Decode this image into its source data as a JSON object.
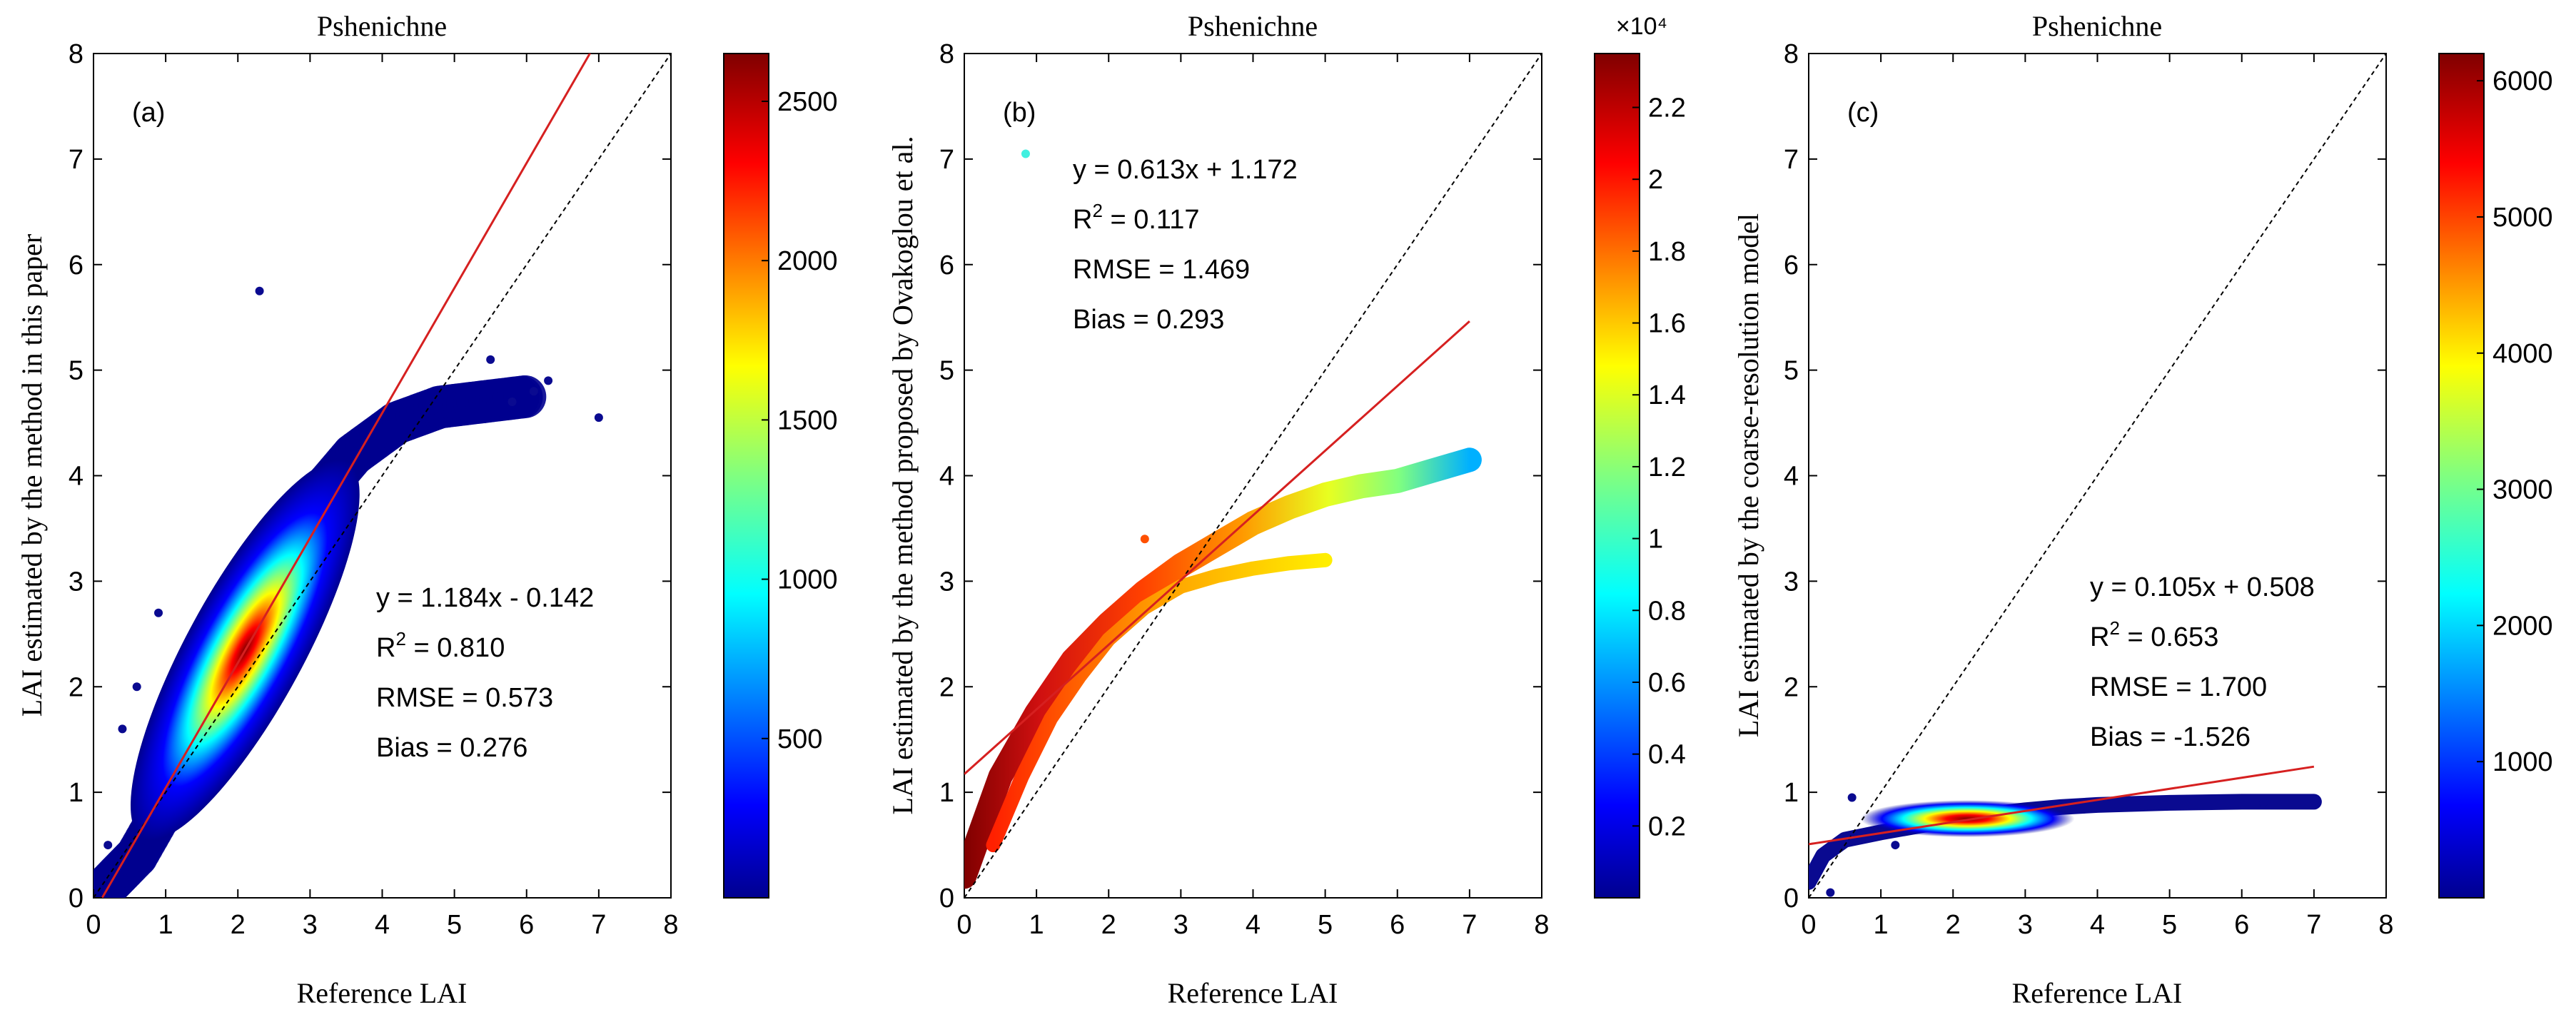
{
  "figure": {
    "panels_count": 3
  },
  "colors": {
    "fit_line": "#d62020",
    "one_to_one": "#000000",
    "axis": "#000000",
    "background": "#ffffff"
  },
  "chart_data": [
    {
      "type": "scatter",
      "panel_label": "(a)",
      "title": "Pshenichne",
      "xlabel": "Reference LAI",
      "ylabel": "LAI estimated by the method in this paper",
      "xlim": [
        0,
        8
      ],
      "ylim": [
        0,
        8
      ],
      "xticks": [
        "0",
        "1",
        "2",
        "3",
        "4",
        "5",
        "6",
        "7",
        "8"
      ],
      "yticks": [
        "0",
        "1",
        "2",
        "3",
        "4",
        "5",
        "6",
        "7",
        "8"
      ],
      "fit": {
        "slope": 1.184,
        "intercept": -0.142,
        "x_range": [
          0,
          6.88
        ]
      },
      "stats": {
        "equation": "y = 1.184x - 0.142",
        "r2_prefix": "R",
        "r2_value": " = 0.810",
        "rmse": "RMSE = 0.573",
        "bias": "Bias = 0.276"
      },
      "density_core": {
        "center": [
          2.1,
          2.35
        ],
        "axis_along": [
          0.62,
          0.78
        ],
        "sigma_along": 0.75,
        "sigma_across": 0.28
      },
      "outliers": [
        [
          0.4,
          1.6
        ],
        [
          2.3,
          5.75
        ],
        [
          7.0,
          4.55
        ],
        [
          6.3,
          4.9
        ],
        [
          0.6,
          2.0
        ],
        [
          0.2,
          0.5
        ],
        [
          0.9,
          2.7
        ],
        [
          5.8,
          4.7
        ],
        [
          6.1,
          4.8
        ],
        [
          5.5,
          5.1
        ]
      ],
      "colorbar": {
        "range": [
          0,
          2650
        ],
        "ticks": [
          500,
          1000,
          1500,
          2000,
          2500
        ],
        "tick_labels": [
          "500",
          "1000",
          "1500",
          "2000",
          "2500"
        ],
        "exponent_label": ""
      }
    },
    {
      "type": "scatter",
      "panel_label": "(b)",
      "title": "Pshenichne",
      "xlabel": "Reference LAI",
      "ylabel": "LAI estimated by the method proposed by Ovakoglou et al.",
      "xlim": [
        0,
        8
      ],
      "ylim": [
        0,
        8
      ],
      "xticks": [
        "0",
        "1",
        "2",
        "3",
        "4",
        "5",
        "6",
        "7",
        "8"
      ],
      "yticks": [
        "0",
        "1",
        "2",
        "3",
        "4",
        "5",
        "6",
        "7",
        "8"
      ],
      "fit": {
        "slope": 0.613,
        "intercept": 1.172,
        "x_range": [
          0,
          7.0
        ]
      },
      "stats": {
        "equation": "y = 0.613x + 1.172",
        "r2_prefix": "R",
        "r2_value": " = 0.117",
        "rmse": "RMSE = 1.469",
        "bias": "Bias = 0.293"
      },
      "curves": [
        {
          "name": "upper-branch",
          "points": [
            [
              0.0,
              0.2
            ],
            [
              0.5,
              1.15
            ],
            [
              1.0,
              1.75
            ],
            [
              1.5,
              2.25
            ],
            [
              2.0,
              2.6
            ],
            [
              2.5,
              2.9
            ],
            [
              3.0,
              3.15
            ],
            [
              3.5,
              3.35
            ],
            [
              4.0,
              3.55
            ],
            [
              4.5,
              3.7
            ],
            [
              5.0,
              3.82
            ],
            [
              5.5,
              3.9
            ],
            [
              6.0,
              3.95
            ],
            [
              6.5,
              4.05
            ],
            [
              7.0,
              4.15
            ]
          ]
        },
        {
          "name": "lower-branch",
          "points": [
            [
              0.4,
              0.5
            ],
            [
              0.8,
              1.15
            ],
            [
              1.2,
              1.7
            ],
            [
              1.6,
              2.1
            ],
            [
              2.0,
              2.45
            ],
            [
              2.5,
              2.75
            ],
            [
              3.0,
              2.95
            ],
            [
              3.5,
              3.05
            ],
            [
              4.0,
              3.12
            ],
            [
              4.5,
              3.17
            ],
            [
              5.0,
              3.2
            ]
          ]
        }
      ],
      "outliers": [
        [
          0.85,
          7.05
        ],
        [
          2.5,
          3.4
        ]
      ],
      "colorbar": {
        "range": [
          0,
          23500
        ],
        "ticks": [
          2000,
          4000,
          6000,
          8000,
          10000,
          12000,
          14000,
          16000,
          18000,
          20000,
          22000
        ],
        "tick_labels": [
          "0.2",
          "0.4",
          "0.6",
          "0.8",
          "1",
          "1.2",
          "1.4",
          "1.6",
          "1.8",
          "2",
          "2.2"
        ],
        "exponent_label": "×10⁴"
      }
    },
    {
      "type": "scatter",
      "panel_label": "(c)",
      "title": "Pshenichne",
      "xlabel": "Reference LAI",
      "ylabel": "LAI estimated by the coarse-resolution model",
      "xlim": [
        0,
        8
      ],
      "ylim": [
        0,
        8
      ],
      "xticks": [
        "0",
        "1",
        "2",
        "3",
        "4",
        "5",
        "6",
        "7",
        "8"
      ],
      "yticks": [
        "0",
        "1",
        "2",
        "3",
        "4",
        "5",
        "6",
        "7",
        "8"
      ],
      "fit": {
        "slope": 0.105,
        "intercept": 0.508,
        "x_range": [
          0,
          7.0
        ]
      },
      "stats": {
        "equation": "y = 0.105x + 0.508",
        "r2_prefix": "R",
        "r2_value": " = 0.653",
        "rmse": "RMSE = 1.700",
        "bias": "Bias = -1.526"
      },
      "curves": [
        {
          "name": "plateau",
          "points": [
            [
              0.0,
              0.15
            ],
            [
              0.2,
              0.4
            ],
            [
              0.5,
              0.55
            ],
            [
              1.0,
              0.62
            ],
            [
              1.5,
              0.68
            ],
            [
              2.0,
              0.74
            ],
            [
              2.5,
              0.79
            ],
            [
              3.0,
              0.83
            ],
            [
              3.5,
              0.86
            ],
            [
              4.0,
              0.88
            ],
            [
              5.0,
              0.9
            ],
            [
              6.0,
              0.91
            ],
            [
              7.0,
              0.91
            ]
          ]
        }
      ],
      "hotspot": {
        "center": [
          2.2,
          0.75
        ]
      },
      "outliers": [
        [
          0.3,
          0.05
        ],
        [
          0.1,
          0.3
        ],
        [
          0.6,
          0.95
        ],
        [
          1.2,
          0.5
        ],
        [
          6.3,
          0.9
        ],
        [
          7.0,
          0.92
        ]
      ],
      "colorbar": {
        "range": [
          0,
          6200
        ],
        "ticks": [
          1000,
          2000,
          3000,
          4000,
          5000,
          6000
        ],
        "tick_labels": [
          "1000",
          "2000",
          "3000",
          "4000",
          "5000",
          "6000"
        ],
        "exponent_label": ""
      }
    }
  ]
}
